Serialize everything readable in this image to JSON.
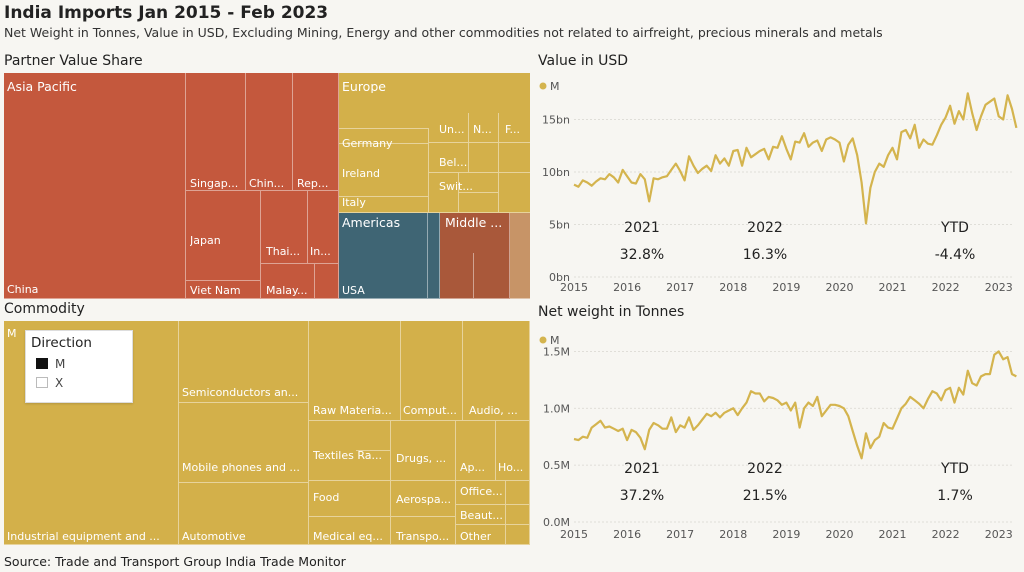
{
  "title": "India Imports Jan 2015 - Feb 2023",
  "subtitle": "Net Weight in Tonnes, Value in USD, Excluding Mining, Energy and other commodities not related to airfreight, precious minerals and metals",
  "source": "Source: Trade and Transport Group India Trade Monitor",
  "colors": {
    "asia": "#c4583d",
    "europe": "#d3b04a",
    "americas": "#3f6574",
    "middle": "#a9583a",
    "other": "#c79467",
    "commodity": "#d3b04a",
    "line": "#d4b44e"
  },
  "legend": {
    "title": "Direction",
    "items": [
      {
        "label": "M",
        "color": "#111111"
      },
      {
        "label": "X",
        "color": "#ffffff"
      }
    ]
  },
  "partner_treemap": {
    "title": "Partner Value Share",
    "labels": {
      "asia": "Asia Pacific",
      "china": "China",
      "singapore": "Singap...",
      "chin2": "Chin...",
      "rep": "Rep...",
      "japan": "Japan",
      "vietnam": "Viet Nam",
      "thai": "Thai...",
      "in": "In...",
      "malay": "Malay...",
      "europe": "Europe",
      "germany": "Germany",
      "ireland": "Ireland",
      "italy": "Italy",
      "un": "Un...",
      "n": "N...",
      "f": "F...",
      "belg": "Belg...",
      "swit": "Swit...",
      "americas": "Americas",
      "usa": "USA",
      "middle": "Middle ..."
    }
  },
  "commodity_treemap": {
    "title": "Commodity",
    "labels": {
      "m": "M",
      "industrial": "Industrial equipment and ...",
      "semis": "Semiconductors an...",
      "mobile": "Mobile phones and ...",
      "automotive": "Automotive",
      "raw": "Raw Materia...",
      "comput": "Comput...",
      "audio": "Audio, ...",
      "textiles": "Textiles Ra...",
      "drugs": "Drugs, ...",
      "ap": "Ap...",
      "ho": "Ho...",
      "food": "Food",
      "aerospa": "Aerospa...",
      "office": "Office...",
      "beaut": "Beaut...",
      "medical": "Medical eq...",
      "transpo": "Transpo...",
      "other": "Other"
    }
  },
  "chart_data": [
    {
      "type": "line",
      "title": "Value in USD",
      "legend": "M",
      "x_ticks": [
        "2015",
        "2016",
        "2017",
        "2018",
        "2019",
        "2020",
        "2021",
        "2022",
        "2023"
      ],
      "y_ticks": [
        "0bn",
        "5bn",
        "10bn",
        "15bn"
      ],
      "ylim": [
        0,
        18
      ],
      "xlim": [
        2015.0,
        2023.25
      ],
      "annotations": [
        {
          "label": "2021",
          "value": "32.8%"
        },
        {
          "label": "2022",
          "value": "16.3%"
        },
        {
          "label": "YTD",
          "value": "-4.4%"
        }
      ],
      "series": [
        {
          "name": "M",
          "x_start": 2015.0,
          "step": 0.0833333,
          "values": [
            8.8,
            8.6,
            9.2,
            9.0,
            8.7,
            9.1,
            9.4,
            9.3,
            9.8,
            9.5,
            9.0,
            10.2,
            9.6,
            9.0,
            8.9,
            9.8,
            9.3,
            7.2,
            9.4,
            9.3,
            9.5,
            9.6,
            10.2,
            10.8,
            10.1,
            9.2,
            11.5,
            10.6,
            9.9,
            10.3,
            10.6,
            10.1,
            11.6,
            10.8,
            11.3,
            10.6,
            12.0,
            12.1,
            10.6,
            12.3,
            11.4,
            11.7,
            12.0,
            12.2,
            11.2,
            12.4,
            12.3,
            13.4,
            12.2,
            11.2,
            12.9,
            12.8,
            13.7,
            12.4,
            12.8,
            13.0,
            12.0,
            13.1,
            13.3,
            13.1,
            12.8,
            11.0,
            12.6,
            13.2,
            11.6,
            9.0,
            5.1,
            8.5,
            10.0,
            10.8,
            10.5,
            11.6,
            12.3,
            11.2,
            13.8,
            14.0,
            13.2,
            14.5,
            12.3,
            13.1,
            12.7,
            12.6,
            13.5,
            14.5,
            15.2,
            16.3,
            14.6,
            15.8,
            15.0,
            17.5,
            15.6,
            14.0,
            15.3,
            16.4,
            16.7,
            17.0,
            15.3,
            15.0,
            17.3,
            16.0,
            14.2
          ]
        }
      ]
    },
    {
      "type": "line",
      "title": "Net weight in Tonnes",
      "legend": "M",
      "x_ticks": [
        "2015",
        "2016",
        "2017",
        "2018",
        "2019",
        "2020",
        "2021",
        "2022",
        "2023"
      ],
      "y_ticks": [
        "0.0M",
        "0.5M",
        "1.0M",
        "1.5M"
      ],
      "ylim": [
        0,
        1.6
      ],
      "xlim": [
        2015.0,
        2023.25
      ],
      "annotations": [
        {
          "label": "2021",
          "value": "37.2%"
        },
        {
          "label": "2022",
          "value": "21.5%"
        },
        {
          "label": "YTD",
          "value": "1.7%"
        }
      ],
      "series": [
        {
          "name": "M",
          "x_start": 2015.0,
          "step": 0.0833333,
          "values": [
            0.73,
            0.72,
            0.75,
            0.74,
            0.83,
            0.86,
            0.89,
            0.83,
            0.84,
            0.82,
            0.8,
            0.82,
            0.72,
            0.81,
            0.79,
            0.74,
            0.64,
            0.81,
            0.87,
            0.85,
            0.82,
            0.82,
            0.92,
            0.79,
            0.85,
            0.83,
            0.92,
            0.81,
            0.85,
            0.9,
            0.95,
            0.93,
            0.96,
            0.92,
            0.96,
            0.98,
            1.0,
            0.94,
            1.0,
            1.05,
            1.15,
            1.13,
            1.13,
            1.06,
            1.1,
            1.09,
            1.07,
            1.03,
            1.05,
            0.98,
            1.05,
            0.83,
            1.0,
            1.05,
            1.02,
            1.1,
            0.93,
            0.98,
            1.03,
            1.03,
            1.02,
            1.0,
            0.93,
            0.8,
            0.67,
            0.56,
            0.78,
            0.65,
            0.72,
            0.75,
            0.87,
            0.83,
            0.82,
            0.91,
            1.0,
            1.04,
            1.1,
            1.07,
            1.04,
            1.0,
            1.08,
            1.15,
            1.13,
            1.07,
            1.16,
            1.18,
            1.05,
            1.18,
            1.12,
            1.33,
            1.22,
            1.2,
            1.28,
            1.3,
            1.3,
            1.47,
            1.5,
            1.43,
            1.45,
            1.3,
            1.28
          ]
        }
      ]
    }
  ]
}
